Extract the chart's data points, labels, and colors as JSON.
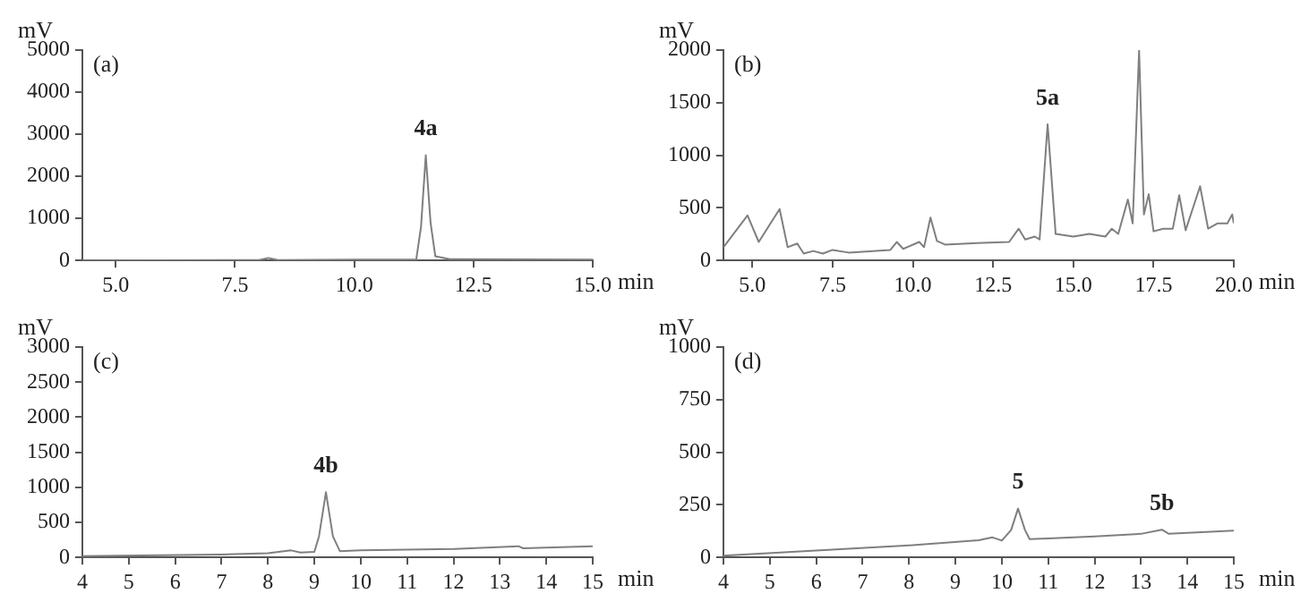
{
  "chart_data": [
    {
      "type": "line",
      "title": "(a)",
      "xlabel": "min",
      "ylabel": "mV",
      "x": [
        4.3,
        8.0,
        8.2,
        8.4,
        10.0,
        11.3,
        11.4,
        11.5,
        11.6,
        11.7,
        12.0,
        15.0
      ],
      "series": [
        {
          "color": "#7f7f7f",
          "values": [
            0,
            10,
            60,
            10,
            20,
            20,
            800,
            2500,
            900,
            100,
            30,
            20
          ]
        }
      ],
      "xlim": [
        4.3,
        15
      ],
      "xticks": [
        {
          "value": 5,
          "label": "5.0"
        },
        {
          "value": 7.5,
          "label": "7.5"
        },
        {
          "value": 10,
          "label": "10.0"
        },
        {
          "value": 12.5,
          "label": "12.5"
        },
        {
          "value": 15,
          "label": "15.0"
        }
      ],
      "ylim": [
        0,
        5000
      ],
      "yticks": [
        0,
        1000,
        2000,
        3000,
        4000,
        5000
      ],
      "annotations": [
        {
          "text": "4a",
          "x": 11.5,
          "y": 2500
        }
      ]
    },
    {
      "type": "line",
      "title": "(b)",
      "xlabel": "min",
      "ylabel": "mV",
      "x": [
        4.1,
        4.85,
        5.2,
        5.85,
        6.1,
        6.4,
        6.6,
        6.9,
        7.2,
        7.5,
        8.0,
        9.3,
        9.5,
        9.7,
        10.2,
        10.35,
        10.55,
        10.75,
        11.0,
        12.0,
        13.0,
        13.3,
        13.5,
        13.8,
        13.95,
        14.2,
        14.45,
        15.0,
        15.5,
        16.0,
        16.2,
        16.4,
        16.7,
        16.85,
        17.05,
        17.2,
        17.35,
        17.5,
        17.8,
        18.1,
        18.3,
        18.5,
        18.95,
        19.2,
        19.5,
        19.8,
        19.95,
        20.0
      ],
      "series": [
        {
          "color": "#7f7f7f",
          "values": [
            126,
            428,
            176,
            489,
            126,
            161,
            65,
            90,
            65,
            100,
            75,
            100,
            176,
            110,
            176,
            126,
            408,
            186,
            151,
            166,
            176,
            302,
            200,
            227,
            200,
            1295,
            252,
            227,
            252,
            227,
            302,
            252,
            579,
            353,
            2000,
            438,
            630,
            277,
            302,
            302,
            620,
            287,
            705,
            302,
            353,
            353,
            438,
            353
          ]
        }
      ],
      "xlim": [
        4.1,
        20
      ],
      "xticks": [
        {
          "value": 5,
          "label": "5.0"
        },
        {
          "value": 7.5,
          "label": "7.5"
        },
        {
          "value": 10,
          "label": "10.0"
        },
        {
          "value": 12.5,
          "label": "12.5"
        },
        {
          "value": 15,
          "label": "15.0"
        },
        {
          "value": 17.5,
          "label": "17.5"
        },
        {
          "value": 20,
          "label": "20.0"
        }
      ],
      "ylim": [
        0,
        2000
      ],
      "yticks": [
        0,
        500,
        1000,
        1500,
        2000
      ],
      "annotations": [
        {
          "text": "5a",
          "x": 14.2,
          "y": 1295
        }
      ]
    },
    {
      "type": "line",
      "title": "(c)",
      "xlabel": "min",
      "ylabel": "mV",
      "x": [
        4,
        7,
        8,
        8.5,
        8.7,
        9,
        9.1,
        9.25,
        9.4,
        9.55,
        10,
        12,
        13.4,
        13.5,
        15
      ],
      "series": [
        {
          "color": "#7f7f7f",
          "values": [
            20,
            40,
            60,
            100,
            70,
            80,
            300,
            930,
            300,
            90,
            100,
            120,
            160,
            130,
            160
          ]
        }
      ],
      "xlim": [
        4,
        15
      ],
      "xticks": [
        4,
        5,
        6,
        7,
        8,
        9,
        10,
        11,
        12,
        13,
        14,
        15
      ],
      "ylim": [
        0,
        3000
      ],
      "yticks": [
        0,
        500,
        1000,
        1500,
        2000,
        2500,
        3000
      ],
      "annotations": [
        {
          "text": "4b",
          "x": 9.25,
          "y": 930
        }
      ]
    },
    {
      "type": "line",
      "title": "(d)",
      "xlabel": "min",
      "ylabel": "mV",
      "x": [
        4,
        8,
        9.5,
        9.8,
        10.0,
        10.2,
        10.35,
        10.5,
        10.6,
        11,
        12,
        13,
        13.45,
        13.6,
        15
      ],
      "series": [
        {
          "color": "#7f7f7f",
          "values": [
            8,
            57,
            82,
            95,
            80,
            130,
            232,
            130,
            87,
            90,
            100,
            112,
            132,
            112,
            127
          ]
        }
      ],
      "xlim": [
        4,
        15
      ],
      "xticks": [
        4,
        5,
        6,
        7,
        8,
        9,
        10,
        11,
        12,
        13,
        14,
        15
      ],
      "ylim": [
        0,
        1000
      ],
      "yticks": [
        0,
        250,
        500,
        750,
        1000
      ],
      "annotations": [
        {
          "text": "5",
          "x": 10.35,
          "y": 232
        },
        {
          "text": "5b",
          "x": 13.45,
          "y": 132
        }
      ]
    }
  ]
}
